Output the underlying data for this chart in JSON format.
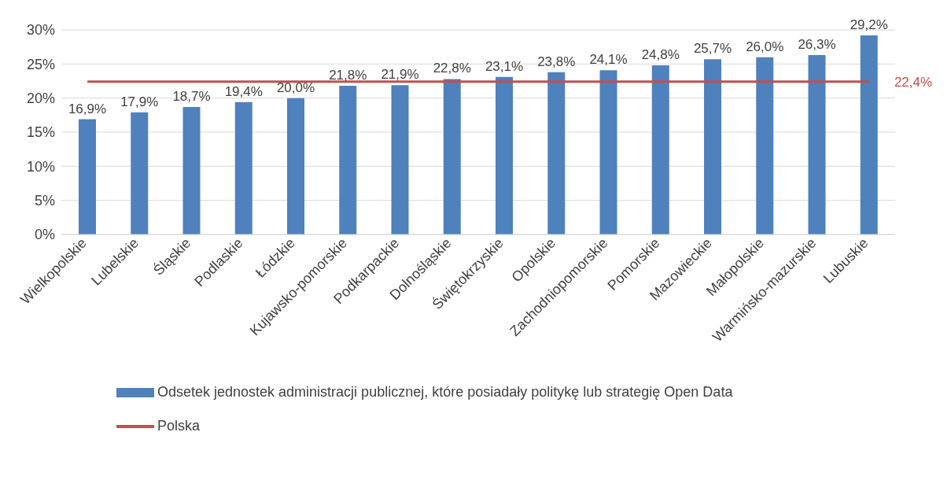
{
  "chart_data": {
    "type": "bar",
    "categories": [
      "Wielkopolskie",
      "Lubelskie",
      "Śląskie",
      "Podlaskie",
      "Łódzkie",
      "Kujawsko-pomorskie",
      "Podkarpackie",
      "Dolnośląskie",
      "Świętokrzyskie",
      "Opolskie",
      "Zachodniopomorskie",
      "Pomorskie",
      "Mazowieckie",
      "Małopolskie",
      "Warmińsko-mazurskie",
      "Lubuskie"
    ],
    "series": [
      {
        "name": "Odsetek jednostek administracji publicznej, które posiadały politykę lub strategię Open Data",
        "color": "#4f81bd",
        "values": [
          16.9,
          17.9,
          18.7,
          19.4,
          20.0,
          21.8,
          21.9,
          22.8,
          23.1,
          23.8,
          24.1,
          24.8,
          25.7,
          26.0,
          26.3,
          29.2
        ],
        "value_labels": [
          "16,9%",
          "17,9%",
          "18,7%",
          "19,4%",
          "20,0%",
          "21,8%",
          "21,9%",
          "22,8%",
          "23,1%",
          "23,8%",
          "24,1%",
          "24,8%",
          "25,7%",
          "26,0%",
          "26,3%",
          "29,2%"
        ]
      },
      {
        "name": "Polska",
        "type": "line",
        "color": "#c0504d",
        "values": [
          22.4,
          22.4,
          22.4,
          22.4,
          22.4,
          22.4,
          22.4,
          22.4,
          22.4,
          22.4,
          22.4,
          22.4,
          22.4,
          22.4,
          22.4,
          22.4
        ],
        "value_labels": [
          null,
          null,
          null,
          null,
          null,
          null,
          null,
          null,
          null,
          null,
          null,
          null,
          null,
          null,
          null,
          "22,4%"
        ]
      }
    ],
    "ylim": [
      0,
      30
    ],
    "yticks": [
      {
        "value": 0,
        "label": "0%"
      },
      {
        "value": 5,
        "label": "5%"
      },
      {
        "value": 10,
        "label": "10%"
      },
      {
        "value": 15,
        "label": "15%"
      },
      {
        "value": 20,
        "label": "20%"
      },
      {
        "value": 25,
        "label": "25%"
      },
      {
        "value": 30,
        "label": "30%"
      }
    ],
    "grid": "y",
    "legend": "bottom",
    "marker": "none"
  }
}
